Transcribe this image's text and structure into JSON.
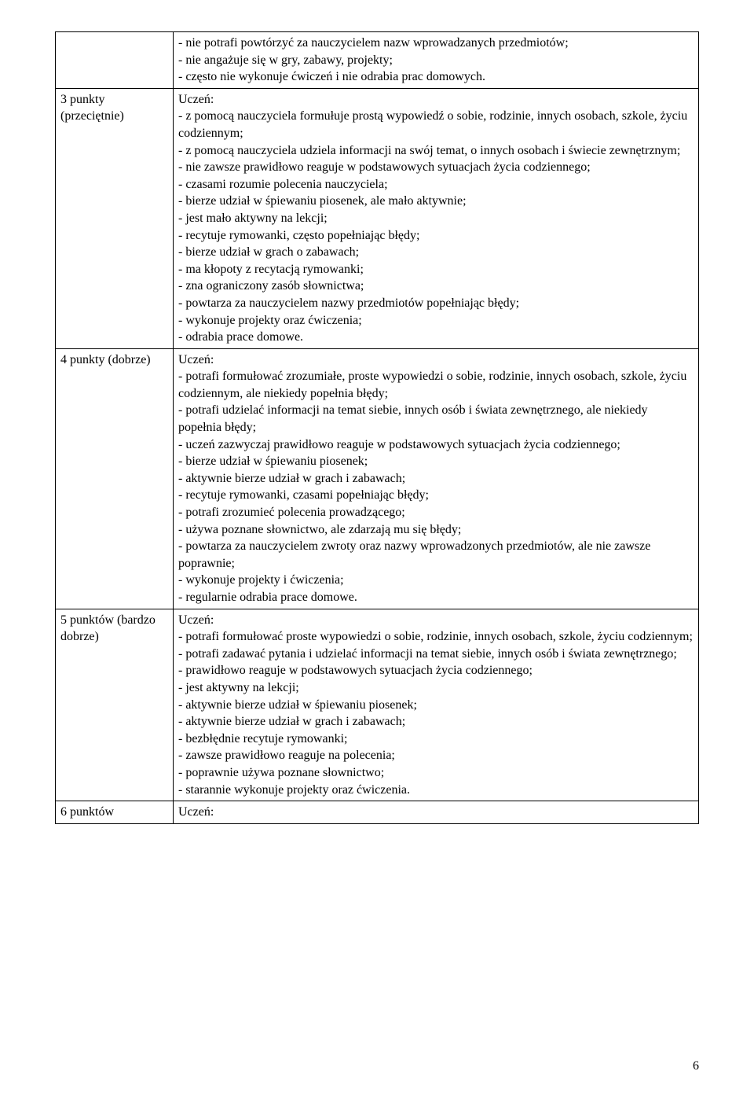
{
  "page_number": "6",
  "rows": [
    {
      "label": "",
      "heading": "",
      "items": [
        "- nie potrafi powtórzyć za nauczycielem nazw wprowadzanych przedmiotów;",
        "- nie angażuje się w gry, zabawy, projekty;",
        "- często nie wykonuje ćwiczeń i nie odrabia prac domowych."
      ]
    },
    {
      "label": "3 punkty (przeciętnie)",
      "heading": "Uczeń:",
      "items": [
        "- z pomocą nauczyciela formułuje prostą wypowiedź o sobie, rodzinie, innych osobach, szkole, życiu codziennym;",
        "- z pomocą nauczyciela udziela informacji na swój temat, o innych osobach i świecie zewnętrznym;",
        "- nie zawsze prawidłowo reaguje w podstawowych sytuacjach życia codziennego;",
        "- czasami rozumie polecenia nauczyciela;",
        "- bierze udział w śpiewaniu piosenek, ale mało aktywnie;",
        "- jest mało aktywny na lekcji;",
        "- recytuje rymowanki, często popełniając błędy;",
        "- bierze udział w grach o zabawach;",
        "- ma kłopoty z recytacją rymowanki;",
        "- zna ograniczony zasób słownictwa;",
        "- powtarza za nauczycielem nazwy przedmiotów popełniając błędy;",
        "- wykonuje projekty oraz ćwiczenia;",
        "- odrabia prace domowe."
      ]
    },
    {
      "label": "4 punkty (dobrze)",
      "heading": "Uczeń:",
      "items": [
        "- potrafi formułować zrozumiałe, proste wypowiedzi o sobie, rodzinie, innych osobach, szkole, życiu codziennym, ale niekiedy popełnia błędy;",
        "- potrafi udzielać informacji na temat siebie, innych osób i świata zewnętrznego, ale niekiedy popełnia błędy;",
        "- uczeń zazwyczaj prawidłowo reaguje w podstawowych sytuacjach życia codziennego;",
        "- bierze udział w śpiewaniu piosenek;",
        "- aktywnie bierze udział w grach i zabawach;",
        "- recytuje rymowanki, czasami popełniając błędy;",
        "- potrafi zrozumieć polecenia prowadzącego;",
        "- używa poznane słownictwo, ale zdarzają mu się błędy;",
        "- powtarza za nauczycielem zwroty oraz nazwy wprowadzonych przedmiotów, ale nie zawsze poprawnie;",
        "- wykonuje projekty i ćwiczenia;",
        "- regularnie odrabia prace domowe."
      ]
    },
    {
      "label": "5 punktów (bardzo dobrze)",
      "heading": "Uczeń:",
      "items": [
        "- potrafi formułować proste wypowiedzi o sobie, rodzinie, innych osobach, szkole, życiu codziennym;",
        "- potrafi zadawać pytania i udzielać informacji na temat siebie, innych osób i świata zewnętrznego;",
        "- prawidłowo reaguje w podstawowych sytuacjach życia codziennego;",
        "- jest aktywny na lekcji;",
        "- aktywnie bierze udział w śpiewaniu piosenek;",
        "- aktywnie bierze udział w grach i zabawach;",
        "- bezbłędnie recytuje rymowanki;",
        "- zawsze prawidłowo reaguje na polecenia;",
        "- poprawnie używa poznane słownictwo;",
        "- starannie wykonuje projekty oraz ćwiczenia."
      ]
    },
    {
      "label": "6 punktów",
      "heading": "Uczeń:",
      "items": []
    }
  ]
}
